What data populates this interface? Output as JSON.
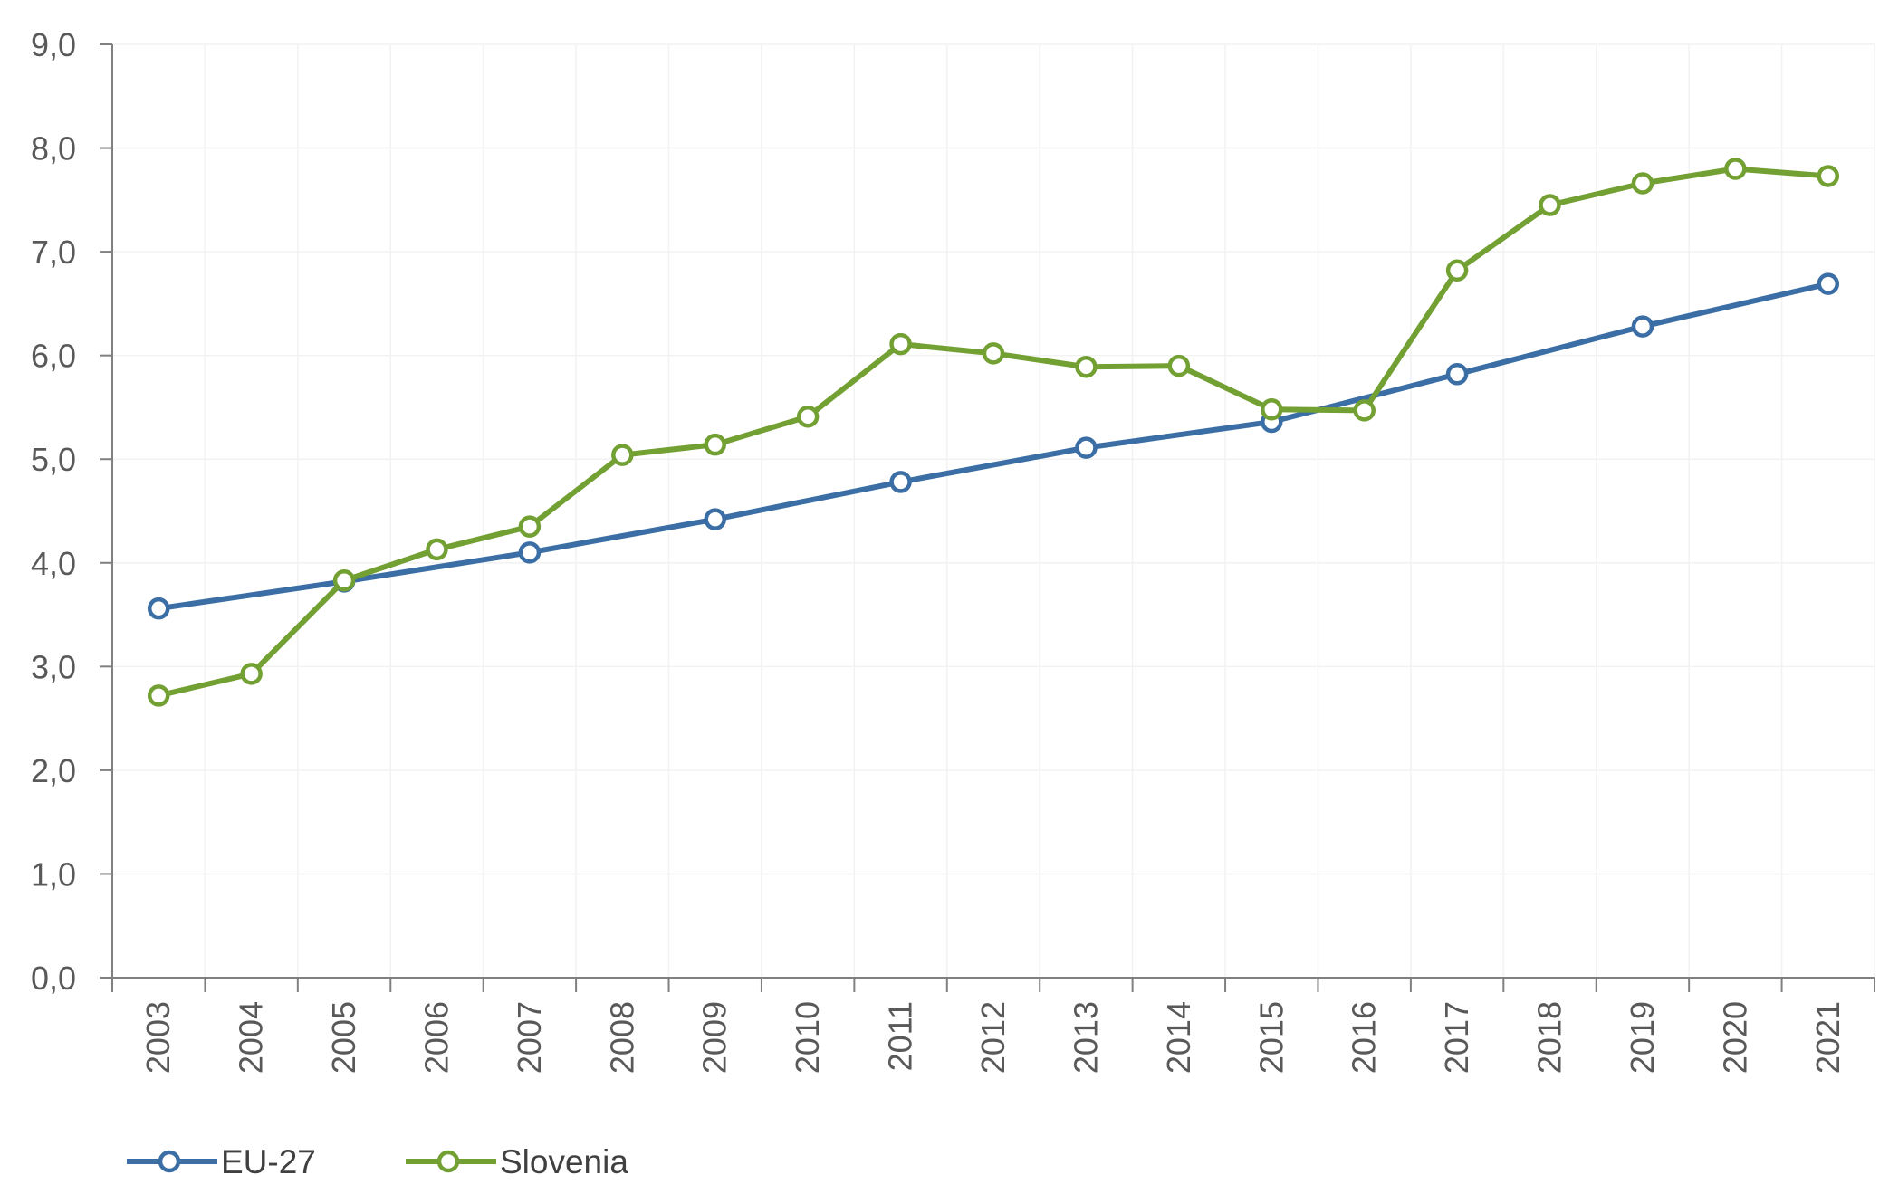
{
  "chart_data": {
    "type": "line",
    "title": "",
    "xlabel": "",
    "ylabel": "",
    "ylim": [
      0,
      9
    ],
    "y_ticks": [
      "0,0",
      "1,0",
      "2,0",
      "3,0",
      "4,0",
      "5,0",
      "6,0",
      "7,0",
      "8,0",
      "9,0"
    ],
    "categories": [
      "2003",
      "2004",
      "2005",
      "2006",
      "2007",
      "2008",
      "2009",
      "2010",
      "2011",
      "2012",
      "2013",
      "2014",
      "2015",
      "2016",
      "2017",
      "2018",
      "2019",
      "2020",
      "2021"
    ],
    "series": [
      {
        "name": "EU-27",
        "color": "#3A6EA5",
        "marker": "hollow-circle",
        "values": [
          3.56,
          null,
          3.82,
          null,
          4.1,
          null,
          4.42,
          null,
          4.78,
          null,
          5.11,
          null,
          5.36,
          null,
          5.82,
          null,
          6.28,
          null,
          6.69
        ]
      },
      {
        "name": "Slovenia",
        "color": "#72A032",
        "marker": "hollow-circle",
        "values": [
          2.72,
          2.93,
          3.83,
          4.13,
          4.35,
          5.04,
          5.14,
          5.41,
          6.11,
          6.02,
          5.89,
          5.9,
          5.48,
          5.47,
          6.82,
          7.45,
          7.66,
          7.8,
          7.73
        ]
      }
    ],
    "grid": true,
    "legend_position": "bottom-left"
  }
}
